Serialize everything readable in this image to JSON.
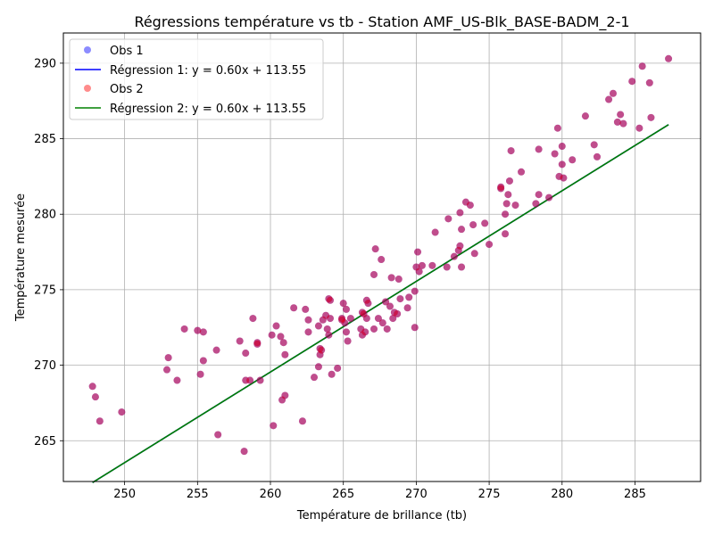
{
  "chart_data": {
    "type": "scatter",
    "title": "Régressions température vs tb - Station AMF_US-Blk_BASE-BADM_2-1",
    "xlabel": "Température de brillance (tb)",
    "ylabel": "Température mesurée",
    "xlim": [
      245.8,
      289.5
    ],
    "ylim": [
      262.3,
      292.0
    ],
    "xticks": [
      250,
      255,
      260,
      265,
      270,
      275,
      280,
      285
    ],
    "yticks": [
      265,
      270,
      275,
      280,
      285,
      290
    ],
    "grid": true,
    "legend_position": "top-left",
    "series": [
      {
        "name": "Obs 1",
        "kind": "scatter",
        "color": "#0000ff",
        "points": [
          [
            247.8,
            268.6
          ],
          [
            248.0,
            267.9
          ],
          [
            248.3,
            266.3
          ],
          [
            249.8,
            266.9
          ],
          [
            252.9,
            269.7
          ],
          [
            253.0,
            270.5
          ],
          [
            253.6,
            269.0
          ],
          [
            254.1,
            272.4
          ],
          [
            255.0,
            272.3
          ],
          [
            255.2,
            269.4
          ],
          [
            255.4,
            270.3
          ],
          [
            255.4,
            272.2
          ],
          [
            256.3,
            271.0
          ],
          [
            256.4,
            265.4
          ],
          [
            257.9,
            271.6
          ],
          [
            258.2,
            264.3
          ],
          [
            258.3,
            270.8
          ],
          [
            258.3,
            269.0
          ],
          [
            258.6,
            269.0
          ],
          [
            258.8,
            273.1
          ],
          [
            259.1,
            271.5
          ],
          [
            259.1,
            271.4
          ],
          [
            259.3,
            269.0
          ],
          [
            260.1,
            272.0
          ],
          [
            260.2,
            266.0
          ],
          [
            260.4,
            272.6
          ],
          [
            260.7,
            271.9
          ],
          [
            260.8,
            267.7
          ],
          [
            260.9,
            271.5
          ],
          [
            261.0,
            270.7
          ],
          [
            261.0,
            268.0
          ],
          [
            261.6,
            273.8
          ],
          [
            262.2,
            266.3
          ],
          [
            262.4,
            273.7
          ],
          [
            262.6,
            272.2
          ],
          [
            262.6,
            273.0
          ],
          [
            263.0,
            269.2
          ],
          [
            263.3,
            272.6
          ],
          [
            263.3,
            269.9
          ],
          [
            263.4,
            271.1
          ],
          [
            263.4,
            270.7
          ],
          [
            263.5,
            271.0
          ],
          [
            263.6,
            273.0
          ],
          [
            263.8,
            273.3
          ],
          [
            263.9,
            272.4
          ],
          [
            264.0,
            272.0
          ],
          [
            264.0,
            274.4
          ],
          [
            264.1,
            274.3
          ],
          [
            264.1,
            273.1
          ],
          [
            264.2,
            269.4
          ],
          [
            264.6,
            269.8
          ],
          [
            264.9,
            273.1
          ],
          [
            264.9,
            273.0
          ],
          [
            265.0,
            274.1
          ],
          [
            265.1,
            272.8
          ],
          [
            265.2,
            273.7
          ],
          [
            265.2,
            272.2
          ],
          [
            265.3,
            271.6
          ],
          [
            265.5,
            273.1
          ],
          [
            266.2,
            272.4
          ],
          [
            266.3,
            273.5
          ],
          [
            266.3,
            272.0
          ],
          [
            266.4,
            273.4
          ],
          [
            266.5,
            272.2
          ],
          [
            266.6,
            273.1
          ],
          [
            266.6,
            274.3
          ],
          [
            266.7,
            274.1
          ],
          [
            267.1,
            276.0
          ],
          [
            267.1,
            272.4
          ],
          [
            267.2,
            277.7
          ],
          [
            267.4,
            273.1
          ],
          [
            267.6,
            277.0
          ],
          [
            267.7,
            272.8
          ],
          [
            267.9,
            274.2
          ],
          [
            268.0,
            272.4
          ],
          [
            268.2,
            273.9
          ],
          [
            268.3,
            275.8
          ],
          [
            268.4,
            273.1
          ],
          [
            268.5,
            273.5
          ],
          [
            268.7,
            273.4
          ],
          [
            268.8,
            275.7
          ],
          [
            268.9,
            274.4
          ],
          [
            269.4,
            273.8
          ],
          [
            269.5,
            274.5
          ],
          [
            269.9,
            272.5
          ],
          [
            269.9,
            274.9
          ],
          [
            270.0,
            276.5
          ],
          [
            270.1,
            277.5
          ],
          [
            270.2,
            276.2
          ],
          [
            270.4,
            276.6
          ],
          [
            271.1,
            276.6
          ],
          [
            271.3,
            278.8
          ],
          [
            272.1,
            276.5
          ],
          [
            272.2,
            279.7
          ],
          [
            272.6,
            277.2
          ],
          [
            272.9,
            277.6
          ],
          [
            273.0,
            277.9
          ],
          [
            273.0,
            280.1
          ],
          [
            273.1,
            276.5
          ],
          [
            273.1,
            279.0
          ],
          [
            273.4,
            280.8
          ],
          [
            273.7,
            280.6
          ],
          [
            273.9,
            279.3
          ],
          [
            274.0,
            277.4
          ],
          [
            274.7,
            279.4
          ],
          [
            275.0,
            278.0
          ],
          [
            275.8,
            281.7
          ],
          [
            275.8,
            281.8
          ],
          [
            276.1,
            278.7
          ],
          [
            276.1,
            280.0
          ],
          [
            276.2,
            280.7
          ],
          [
            276.3,
            281.3
          ],
          [
            276.4,
            282.2
          ],
          [
            276.5,
            284.2
          ],
          [
            276.8,
            280.6
          ],
          [
            277.2,
            282.8
          ],
          [
            278.2,
            280.7
          ],
          [
            278.4,
            284.3
          ],
          [
            278.4,
            281.3
          ],
          [
            279.1,
            281.1
          ],
          [
            279.5,
            284.0
          ],
          [
            279.7,
            285.7
          ],
          [
            279.8,
            282.5
          ],
          [
            280.0,
            284.5
          ],
          [
            280.0,
            283.3
          ],
          [
            280.1,
            282.4
          ],
          [
            280.7,
            283.6
          ],
          [
            281.6,
            286.5
          ],
          [
            282.2,
            284.6
          ],
          [
            282.4,
            283.8
          ],
          [
            283.2,
            287.6
          ],
          [
            283.5,
            288.0
          ],
          [
            283.8,
            286.1
          ],
          [
            284.0,
            286.6
          ],
          [
            284.2,
            286.0
          ],
          [
            284.8,
            288.8
          ],
          [
            285.3,
            285.7
          ],
          [
            285.5,
            289.8
          ],
          [
            286.0,
            288.7
          ],
          [
            286.1,
            286.4
          ],
          [
            287.3,
            290.3
          ]
        ]
      },
      {
        "name": "Régression 1: y = 0.60x + 113.55",
        "kind": "line",
        "color": "#0000ff",
        "slope": 0.6,
        "intercept": 113.55,
        "x_range": [
          247.8,
          287.3
        ]
      },
      {
        "name": "Obs 2",
        "kind": "scatter",
        "color": "#ff0000",
        "same_points_as": "Obs 1"
      },
      {
        "name": "Régression 2: y = 0.60x + 113.55",
        "kind": "line",
        "color": "#008000",
        "slope": 0.6,
        "intercept": 113.55,
        "x_range": [
          247.8,
          287.3
        ]
      }
    ]
  }
}
